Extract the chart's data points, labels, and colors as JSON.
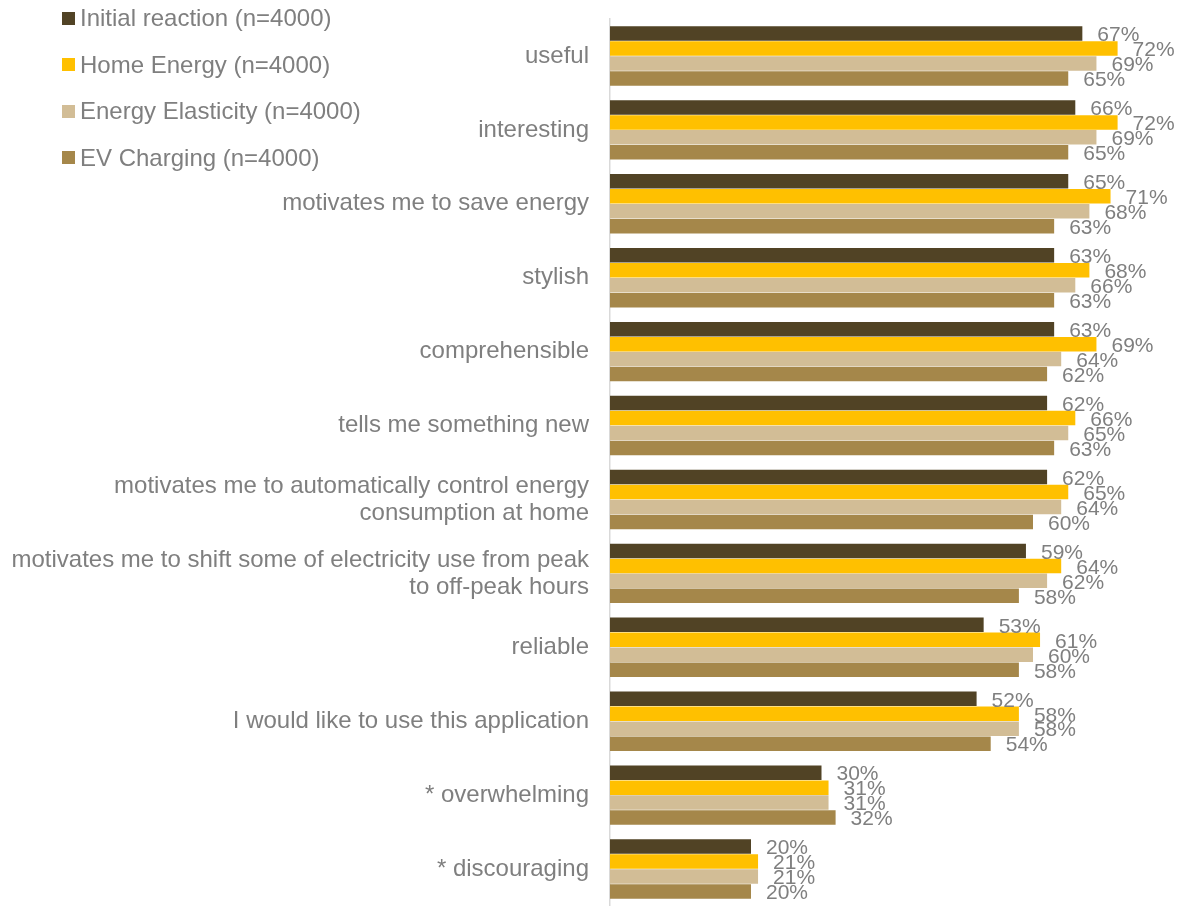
{
  "chart_data": {
    "type": "bar",
    "orientation": "horizontal",
    "categories": [
      "useful",
      "interesting",
      "motivates me to save energy",
      "stylish",
      "comprehensible",
      "tells me something new",
      "motivates me to automatically control energy consumption at home",
      "motivates me to shift some of electricity use from peak to off-peak hours",
      "reliable",
      "I would like to use this application",
      "* overwhelming",
      "* discouraging"
    ],
    "series": [
      {
        "name": "Initial reaction (n=4000)",
        "color": "#514325",
        "values": [
          67,
          66,
          65,
          63,
          63,
          62,
          62,
          59,
          53,
          52,
          30,
          20
        ],
        "value_labels": [
          "67%",
          "66%",
          "65%",
          "63%",
          "63%",
          "62%",
          "62%",
          "59%",
          "53%",
          "52%",
          "30%",
          "20%"
        ]
      },
      {
        "name": "Home Energy (n=4000)",
        "color": "#ffc000",
        "values": [
          72,
          72,
          71,
          68,
          69,
          66,
          65,
          64,
          61,
          58,
          31,
          21
        ],
        "value_labels": [
          "72%",
          "72%",
          "71%",
          "68%",
          "69%",
          "66%",
          "65%",
          "64%",
          "61%",
          "58%",
          "31%",
          "21%"
        ]
      },
      {
        "name": "Energy Elasticity (n=4000)",
        "color": "#d2bd96",
        "values": [
          69,
          69,
          68,
          66,
          64,
          65,
          64,
          62,
          60,
          58,
          31,
          21
        ],
        "value_labels": [
          "69%",
          "69%",
          "68%",
          "66%",
          "64%",
          "65%",
          "64%",
          "62%",
          "60%",
          "58%",
          "31%",
          "21%"
        ]
      },
      {
        "name": "EV Charging (n=4000)",
        "color": "#a5874a",
        "values": [
          65,
          65,
          63,
          63,
          62,
          63,
          60,
          58,
          58,
          54,
          32,
          20
        ],
        "value_labels": [
          "65%",
          "65%",
          "63%",
          "63%",
          "62%",
          "63%",
          "60%",
          "58%",
          "58%",
          "54%",
          "32%",
          "20%"
        ]
      }
    ],
    "legend": "top left",
    "tick_labels": "y"
  }
}
